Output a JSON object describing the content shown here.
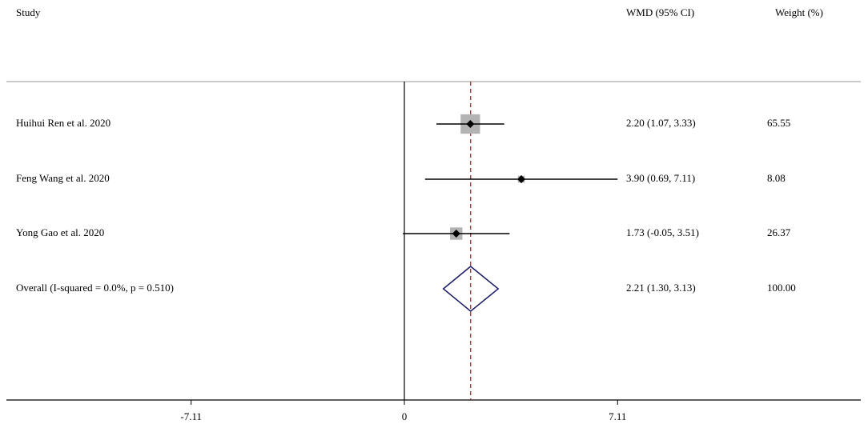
{
  "chart_data": {
    "type": "forest",
    "headers": {
      "study": "Study",
      "effect": "WMD (95% CI)",
      "weight": "Weight (%)"
    },
    "categories": [
      "Huihui Ren et al. 2020",
      "Feng Wang et al. 2020",
      "Yong Gao et al. 2020",
      "Overall  (I-squared = 0.0%, p = 0.510)"
    ],
    "values": [
      2.2,
      3.9,
      1.73,
      2.21
    ],
    "lower": [
      1.07,
      0.69,
      -0.05,
      1.3
    ],
    "upper": [
      3.33,
      7.11,
      3.51,
      3.13
    ],
    "value_labels": [
      "2.20 (1.07, 3.33)",
      "3.90 (0.69, 7.11)",
      "1.73 (-0.05, 3.51)",
      "2.21 (1.30, 3.13)"
    ],
    "weights": [
      65.55,
      8.08,
      26.37,
      100
    ],
    "weight_labels": [
      "65.55",
      "8.08",
      "26.37",
      "100.00"
    ],
    "xlim": [
      -13.27,
      15.22
    ],
    "xticks": [
      -7.11,
      0,
      7.11
    ],
    "box_color": "#b3b3b3",
    "line_color": "#000000",
    "diamond_color": "#1a1a66",
    "overall_line_color": "#8b1a1a"
  }
}
